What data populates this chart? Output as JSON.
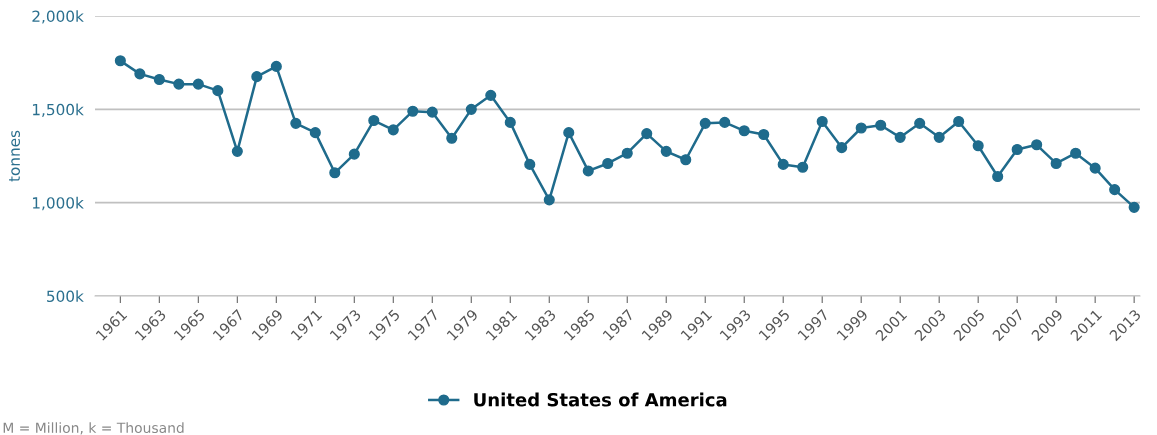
{
  "chart_data": {
    "type": "line",
    "ylabel": "tonnes",
    "annotations": [
      "M = Million, k = Thousand"
    ],
    "x": [
      1961,
      1962,
      1963,
      1964,
      1965,
      1966,
      1967,
      1968,
      1969,
      1970,
      1971,
      1972,
      1973,
      1974,
      1975,
      1976,
      1977,
      1978,
      1979,
      1980,
      1981,
      1982,
      1983,
      1984,
      1985,
      1986,
      1987,
      1988,
      1989,
      1990,
      1991,
      1992,
      1993,
      1994,
      1995,
      1996,
      1997,
      1998,
      1999,
      2000,
      2001,
      2002,
      2003,
      2004,
      2005,
      2006,
      2007,
      2008,
      2009,
      2010,
      2011,
      2012,
      2013
    ],
    "series": [
      {
        "name": "United States of America",
        "color": "#1f6b8c",
        "values": [
          1760,
          1690,
          1660,
          1635,
          1635,
          1600,
          1275,
          1675,
          1730,
          1425,
          1375,
          1160,
          1260,
          1440,
          1390,
          1490,
          1485,
          1345,
          1500,
          1575,
          1430,
          1205,
          1015,
          1375,
          1170,
          1210,
          1265,
          1370,
          1275,
          1230,
          1425,
          1430,
          1385,
          1365,
          1205,
          1190,
          1435,
          1295,
          1400,
          1415,
          1350,
          1425,
          1350,
          1435,
          1305,
          1140,
          1285,
          1310,
          1210,
          1265,
          1185,
          1070,
          975
        ]
      }
    ],
    "xlim": [
      1959.7,
      2013.3
    ],
    "xticks": [
      1961,
      1963,
      1965,
      1967,
      1969,
      1971,
      1973,
      1975,
      1977,
      1979,
      1981,
      1983,
      1985,
      1987,
      1989,
      1991,
      1993,
      1995,
      1997,
      1999,
      2001,
      2003,
      2005,
      2007,
      2009,
      2011,
      2013
    ],
    "ylim": [
      500,
      2000
    ],
    "yticks": [
      {
        "value": 500,
        "label": "500k"
      },
      {
        "value": 1000,
        "label": "1,000k"
      },
      {
        "value": 1500,
        "label": "1,500k"
      },
      {
        "value": 2000,
        "label": "2,000k"
      }
    ],
    "grid": "y",
    "legend": "bottom",
    "marker": "circle",
    "line_style": "solid"
  }
}
